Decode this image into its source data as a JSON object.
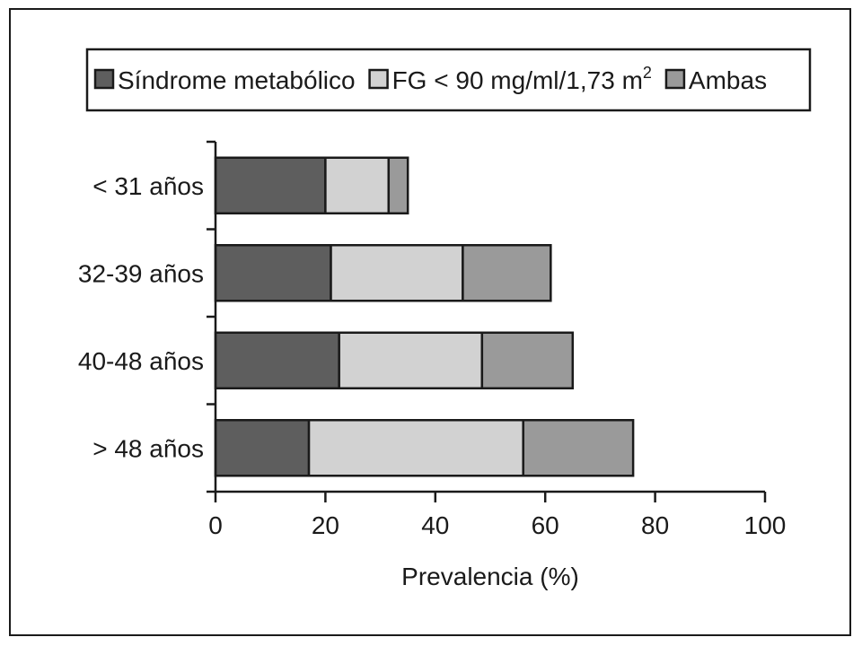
{
  "chart_data": {
    "type": "bar",
    "orientation": "horizontal",
    "stacked": true,
    "categories": [
      "< 31 años",
      "32-39 años",
      "40-48 años",
      "> 48 años"
    ],
    "series": [
      {
        "name": "Síndrome metabólico",
        "values": [
          20,
          21,
          22.5,
          17
        ],
        "color": "#5e5e5e"
      },
      {
        "name": "FG < 90 mg/ml/1,73 m",
        "name_sup": "2",
        "values": [
          11.5,
          24,
          26,
          39
        ],
        "color": "#d2d2d2"
      },
      {
        "name": "Ambas",
        "values": [
          3.5,
          16,
          16.5,
          20
        ],
        "color": "#9a9a9a"
      }
    ],
    "xlabel": "Prevalencia (%)",
    "ylabel": "",
    "xlim": [
      0,
      100
    ],
    "xticks": [
      "0",
      "20",
      "40",
      "60",
      "80",
      "100"
    ],
    "legend_position": "top",
    "grid": false
  }
}
